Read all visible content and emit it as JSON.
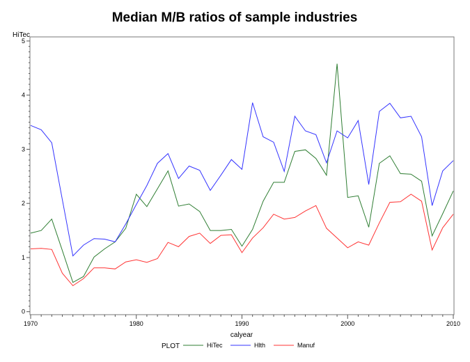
{
  "chart_data": {
    "type": "line",
    "title": "Median M/B ratios of sample industries",
    "xlabel": "calyear",
    "ylabel": "HiTec",
    "xlim": [
      1970,
      2010
    ],
    "ylim": [
      0,
      5
    ],
    "xticks": [
      1970,
      1980,
      1990,
      2000,
      2010
    ],
    "yticks": [
      0,
      1,
      2,
      3,
      4,
      5
    ],
    "grid": false,
    "legend_title": "PLOT",
    "legend_position": "bottom",
    "x": [
      1970,
      1971,
      1972,
      1973,
      1974,
      1975,
      1976,
      1977,
      1978,
      1979,
      1980,
      1981,
      1982,
      1983,
      1984,
      1985,
      1986,
      1987,
      1988,
      1989,
      1990,
      1991,
      1992,
      1993,
      1994,
      1995,
      1996,
      1997,
      1998,
      1999,
      2000,
      2001,
      2002,
      2003,
      2004,
      2005,
      2006,
      2007,
      2008,
      2009,
      2010
    ],
    "series": [
      {
        "name": "HiTec",
        "color": "#2e7d32",
        "values": [
          1.45,
          1.5,
          1.71,
          1.13,
          0.54,
          0.65,
          1.01,
          1.16,
          1.29,
          1.54,
          2.17,
          1.94,
          2.27,
          2.6,
          1.95,
          1.99,
          1.85,
          1.5,
          1.5,
          1.52,
          1.21,
          1.52,
          2.04,
          2.39,
          2.39,
          2.96,
          2.99,
          2.83,
          2.52,
          4.58,
          2.11,
          2.14,
          1.56,
          2.74,
          2.88,
          2.55,
          2.54,
          2.41,
          1.4,
          1.81,
          2.23
        ]
      },
      {
        "name": "Hlth",
        "color": "#3333ff",
        "values": [
          3.44,
          3.36,
          3.12,
          2.07,
          1.03,
          1.23,
          1.35,
          1.34,
          1.29,
          1.62,
          1.98,
          2.33,
          2.74,
          2.92,
          2.46,
          2.69,
          2.61,
          2.24,
          2.52,
          2.81,
          2.63,
          3.86,
          3.23,
          3.13,
          2.59,
          3.61,
          3.34,
          3.27,
          2.75,
          3.34,
          3.21,
          3.53,
          2.35,
          3.7,
          3.85,
          3.58,
          3.61,
          3.23,
          1.96,
          2.6,
          2.79
        ]
      },
      {
        "name": "Manuf",
        "color": "#ff3333",
        "values": [
          1.16,
          1.17,
          1.15,
          0.71,
          0.48,
          0.61,
          0.81,
          0.81,
          0.79,
          0.92,
          0.96,
          0.91,
          0.98,
          1.28,
          1.2,
          1.39,
          1.45,
          1.26,
          1.41,
          1.42,
          1.09,
          1.36,
          1.55,
          1.8,
          1.71,
          1.74,
          1.86,
          1.96,
          1.54,
          1.36,
          1.18,
          1.29,
          1.23,
          1.64,
          2.02,
          2.03,
          2.17,
          2.04,
          1.14,
          1.55,
          1.8
        ]
      }
    ]
  }
}
